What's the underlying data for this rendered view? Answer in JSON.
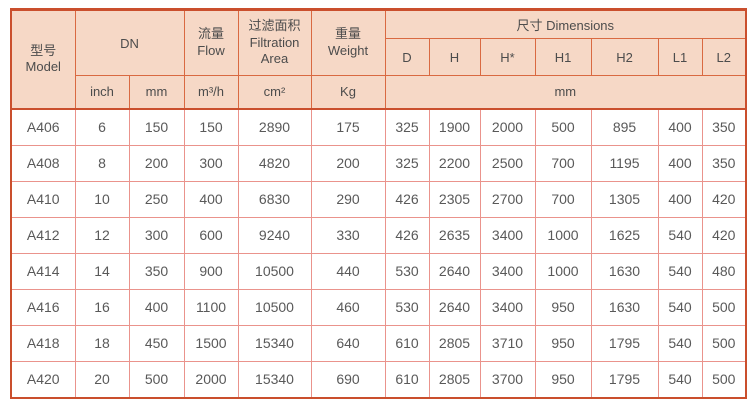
{
  "table": {
    "header": {
      "model_zh": "型号",
      "model_en": "Model",
      "dn": "DN",
      "flow_zh": "流量",
      "flow_en": "Flow",
      "filtration_zh": "过滤面积",
      "filtration_en_1": "Filtration",
      "filtration_en_2": "Area",
      "weight_zh": "重量",
      "weight_en": "Weight",
      "dimensions": "尺寸 Dimensions",
      "dim_cols": [
        "D",
        "H",
        "H*",
        "H1",
        "H2",
        "L1",
        "L2"
      ],
      "unit_inch": "inch",
      "unit_mm": "mm",
      "unit_flow": "m³/h",
      "unit_area": "cm²",
      "unit_weight": "Kg",
      "unit_dims": "mm"
    },
    "columns": [
      "model",
      "dn-inch",
      "dn-mm",
      "flow",
      "filtration-area",
      "weight",
      "d",
      "h",
      "h-star",
      "h1",
      "h2",
      "l1",
      "l2"
    ],
    "rows": [
      [
        "A406",
        "6",
        "150",
        "150",
        "2890",
        "175",
        "325",
        "1900",
        "2000",
        "500",
        "895",
        "400",
        "350"
      ],
      [
        "A408",
        "8",
        "200",
        "300",
        "4820",
        "200",
        "325",
        "2200",
        "2500",
        "700",
        "1195",
        "400",
        "350"
      ],
      [
        "A410",
        "10",
        "250",
        "400",
        "6830",
        "290",
        "426",
        "2305",
        "2700",
        "700",
        "1305",
        "400",
        "420"
      ],
      [
        "A412",
        "12",
        "300",
        "600",
        "9240",
        "330",
        "426",
        "2635",
        "3400",
        "1000",
        "1625",
        "540",
        "420"
      ],
      [
        "A414",
        "14",
        "350",
        "900",
        "10500",
        "440",
        "530",
        "2640",
        "3400",
        "1000",
        "1630",
        "540",
        "480"
      ],
      [
        "A416",
        "16",
        "400",
        "1100",
        "10500",
        "460",
        "530",
        "2640",
        "3400",
        "950",
        "1630",
        "540",
        "500"
      ],
      [
        "A418",
        "18",
        "450",
        "1500",
        "15340",
        "640",
        "610",
        "2805",
        "3710",
        "950",
        "1795",
        "540",
        "500"
      ],
      [
        "A420",
        "20",
        "500",
        "2000",
        "15340",
        "690",
        "610",
        "2805",
        "3700",
        "950",
        "1795",
        "540",
        "500"
      ]
    ],
    "colors": {
      "header_bg": "#f6d8c6",
      "header_border": "#d96941",
      "outer_border": "#ca4f2d",
      "data_border": "#ea938c",
      "data_text": "#595959",
      "header_text": "#4c4c4c"
    }
  }
}
